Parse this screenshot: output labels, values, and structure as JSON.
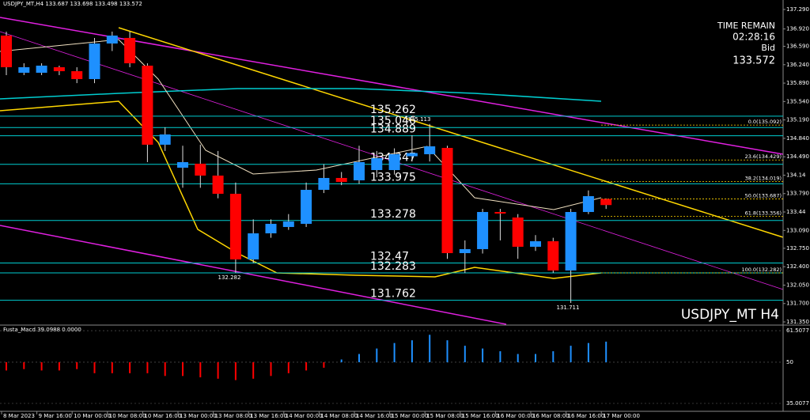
{
  "chart_data": {
    "type": "candlestick",
    "title": "USDJPY_MT,H4 133.687 133.698 133.498 133.572",
    "symbol_label": "USDJPY_MT H4",
    "info": [
      "TIME REMAIN",
      "02:28:16",
      "Bid",
      "133.572"
    ],
    "categories": [
      "8 Mar 2023",
      null,
      "9 Mar 16:00",
      null,
      "10 Mar 00:00",
      null,
      "10 Mar 08:00",
      null,
      "10 Mar 16:00",
      null,
      "13 Mar 00:00",
      null,
      "13 Mar 08:00",
      null,
      "13 Mar 16:00",
      null,
      "14 Mar 00:00",
      null,
      "14 Mar 08:00",
      null,
      "14 Mar 16:00",
      null,
      "15 Mar 00:00",
      null,
      "15 Mar 08:00",
      null,
      "15 Mar 16:00",
      null,
      "16 Mar 00:00",
      null,
      "16 Mar 08:00",
      null,
      "16 Mar 16:00",
      null,
      "17 Mar 00:00"
    ],
    "open": [
      136.794,
      136.087,
      136.087,
      136.192,
      136.117,
      135.967,
      136.643,
      136.749,
      136.222,
      134.719,
      134.282,
      134.358,
      134.132,
      133.786,
      132.538,
      133.034,
      133.155,
      133.215,
      133.861,
      134.087,
      134.042,
      134.237,
      134.237,
      134.5,
      134.538,
      134.658,
      132.658,
      132.734,
      133.44,
      133.335,
      132.779,
      132.884,
      132.328,
      133.44,
      133.687
    ],
    "high": [
      136.869,
      136.267,
      136.267,
      136.222,
      136.192,
      136.749,
      136.869,
      136.869,
      136.267,
      135.05,
      134.7,
      134.72,
      134.6,
      134.0,
      133.3,
      133.3,
      133.4,
      134.0,
      134.35,
      134.2,
      134.7,
      134.6,
      134.65,
      134.9,
      135.113,
      134.7,
      132.9,
      133.5,
      133.5,
      133.4,
      133.0,
      132.95,
      133.5,
      133.85,
      133.698
    ],
    "low": [
      136.042,
      136.042,
      136.042,
      136.042,
      135.89,
      135.89,
      136.5,
      136.192,
      134.388,
      134.6,
      133.9,
      133.9,
      133.7,
      132.282,
      132.47,
      132.95,
      133.1,
      133.155,
      133.8,
      133.95,
      133.975,
      134.1,
      134.15,
      134.4,
      134.4,
      132.55,
      132.283,
      132.65,
      132.9,
      132.55,
      132.7,
      132.283,
      131.711,
      133.4,
      133.498
    ],
    "close": [
      136.192,
      136.192,
      136.222,
      136.117,
      135.967,
      136.643,
      136.794,
      136.267,
      134.719,
      134.914,
      134.388,
      134.132,
      133.786,
      132.538,
      133.034,
      133.215,
      133.26,
      133.861,
      134.087,
      134.012,
      134.388,
      134.463,
      134.538,
      134.56,
      134.688,
      132.658,
      132.734,
      133.44,
      133.41,
      132.779,
      132.884,
      132.328,
      133.44,
      133.741,
      133.572
    ],
    "up_color": "#1e90ff",
    "down_color": "#ff0000",
    "ylim": [
      131.305,
      137.47
    ],
    "yticks": [
      {
        "value": 137.29,
        "label": "137.290"
      },
      {
        "value": 136.92,
        "label": "136.920"
      },
      {
        "value": 136.59,
        "label": "136.590"
      },
      {
        "value": 136.24,
        "label": "136.240"
      },
      {
        "value": 135.89,
        "label": "135.890"
      },
      {
        "value": 135.54,
        "label": "135.540"
      },
      {
        "value": 135.19,
        "label": "135.190"
      },
      {
        "value": 134.84,
        "label": "134.840"
      },
      {
        "value": 134.49,
        "label": "134.490"
      },
      134.14,
      {
        "value": 133.79,
        "label": "133.790"
      },
      133.44,
      {
        "value": 133.09,
        "label": "133.090"
      },
      {
        "value": 132.75,
        "label": "132.750"
      },
      {
        "value": 132.4,
        "label": "132.400"
      },
      {
        "value": 132.05,
        "label": "132.050"
      },
      {
        "value": 131.7,
        "label": "131.700"
      },
      {
        "value": 131.35,
        "label": "131.350"
      }
    ],
    "levels": [
      135.262,
      135.046,
      134.889,
      134.347,
      133.975,
      133.278,
      132.47,
      132.283,
      131.762
    ],
    "level_color": "#00cdd0",
    "fib_levels": [
      {
        "value": 135.092,
        "label": "0.0(135.092)"
      },
      {
        "value": 134.429,
        "label": "23.6(134.429)"
      },
      {
        "value": 134.019,
        "label": "38.2(134.019)"
      },
      {
        "value": 133.687,
        "label": "50.0(133.687)"
      },
      {
        "value": 133.356,
        "label": "61.8(133.356)"
      },
      {
        "value": 132.282,
        "label": "100.0(132.282)"
      }
    ],
    "fib_color": "#ffd700",
    "annotations": [
      135.113,
      132.282,
      131.711
    ],
    "macd": {
      "label": "Fusta_Macd 39.0988 0.0000",
      "values": [
        47,
        47.5,
        47,
        47,
        47.5,
        46,
        46,
        46,
        46,
        45,
        45,
        44.5,
        44,
        43.5,
        44,
        45,
        46,
        47,
        48,
        51,
        53,
        55,
        57,
        58,
        60,
        58,
        56,
        55,
        54,
        53,
        53,
        54,
        56,
        57,
        57.5
      ],
      "ylim": [
        32.13,
        63.24
      ],
      "yticks": [
        61.5077,
        50,
        35.0077
      ],
      "base": 50
    }
  }
}
